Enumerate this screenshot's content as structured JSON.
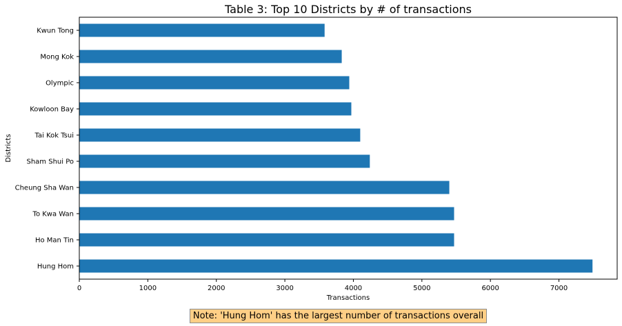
{
  "chart_data": {
    "type": "bar",
    "orientation": "horizontal",
    "title": "Table 3: Top 10 Districts by # of transactions",
    "xlabel": "Transactions",
    "ylabel": "Districts",
    "xlim": [
      0,
      7850
    ],
    "xticks": [
      0,
      1000,
      2000,
      3000,
      4000,
      5000,
      6000,
      7000
    ],
    "grid": false,
    "bar_color": "#1f77b4",
    "categories": [
      "Kwun Tong",
      "Mong Kok",
      "Olympic",
      "Kowloon Bay",
      "Tai Kok Tsui",
      "Sham Shui Po",
      "Cheung Sha Wan",
      "To Kwa Wan",
      "Ho Man Tin",
      "Hung Hom"
    ],
    "values": [
      3580,
      3830,
      3940,
      3970,
      4100,
      4240,
      5400,
      5470,
      5470,
      7490
    ]
  },
  "note": {
    "text": "Note: 'Hung Hom' has the largest number of transactions overall",
    "background": "#ffcf86"
  }
}
